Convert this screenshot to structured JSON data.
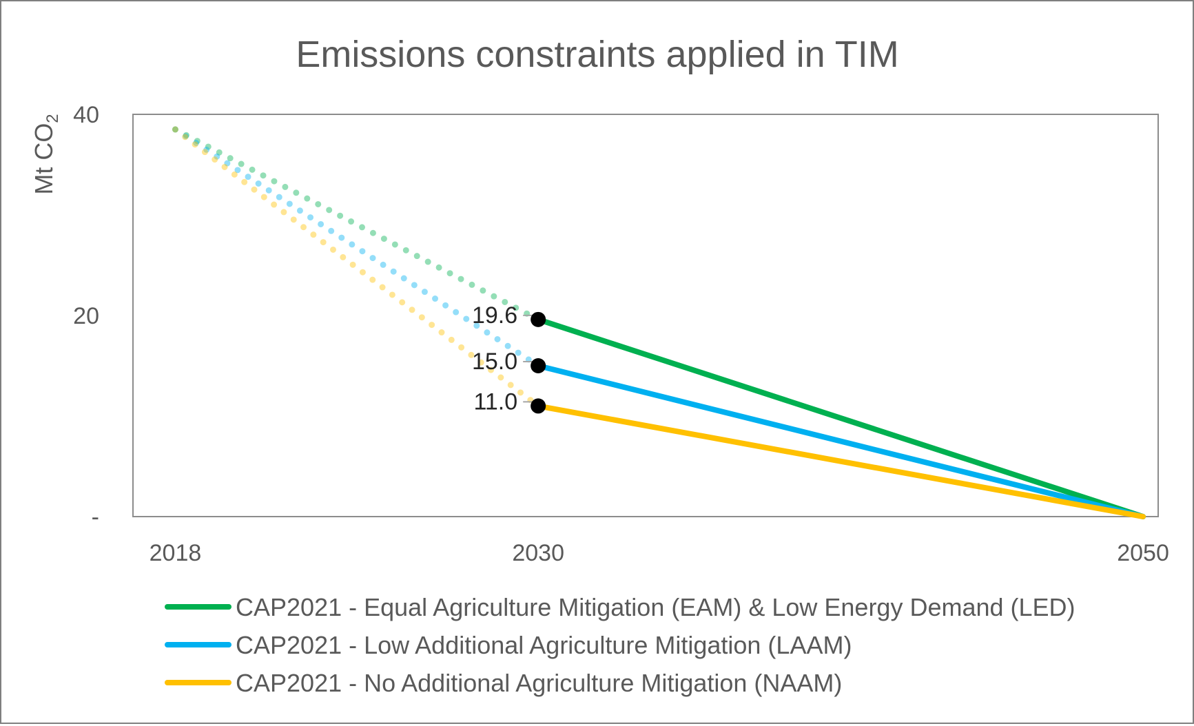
{
  "chart_data": {
    "type": "line",
    "title": "Emissions constraints applied in TIM",
    "ylabel": {
      "main": "Mt CO",
      "subscript": "2"
    },
    "xlabel": "",
    "ylim": [
      0,
      40
    ],
    "yticks": [
      {
        "value": 0,
        "label": "-"
      },
      {
        "value": 20,
        "label": "20"
      },
      {
        "value": 40,
        "label": "40"
      }
    ],
    "xlim": [
      2016.6,
      2050.5
    ],
    "xticks": [
      {
        "value": 2018,
        "label": "2018"
      },
      {
        "value": 2030,
        "label": "2030"
      },
      {
        "value": 2050,
        "label": "2050"
      }
    ],
    "grid": false,
    "legend_position": "bottom",
    "series": [
      {
        "name": "CAP2021 - Equal Agriculture Mitigation (EAM) & Low Energy Demand (LED)",
        "color": "#00b050",
        "trajectory": {
          "x": [
            2018,
            2030
          ],
          "y": [
            38.5,
            19.6
          ]
        },
        "constraint": {
          "x": [
            2030,
            2050
          ],
          "y": [
            19.6,
            0
          ]
        },
        "label": {
          "x": 2030,
          "y": 19.6,
          "text": "19.6"
        }
      },
      {
        "name": "CAP2021 - Low Additional Agriculture Mitigation (LAAM)",
        "color": "#00b0f0",
        "trajectory": {
          "x": [
            2018,
            2030
          ],
          "y": [
            38.5,
            15.0
          ]
        },
        "constraint": {
          "x": [
            2030,
            2050
          ],
          "y": [
            15.0,
            0
          ]
        },
        "label": {
          "x": 2030,
          "y": 15.0,
          "text": "15.0"
        }
      },
      {
        "name": "CAP2021 - No Additional Agriculture Mitigation (NAAM)",
        "color": "#ffc000",
        "trajectory": {
          "x": [
            2018,
            2030
          ],
          "y": [
            38.5,
            11.0
          ]
        },
        "constraint": {
          "x": [
            2030,
            2050
          ],
          "y": [
            11.0,
            0
          ]
        },
        "label": {
          "x": 2030,
          "y": 11.0,
          "text": "11.0"
        }
      }
    ]
  }
}
